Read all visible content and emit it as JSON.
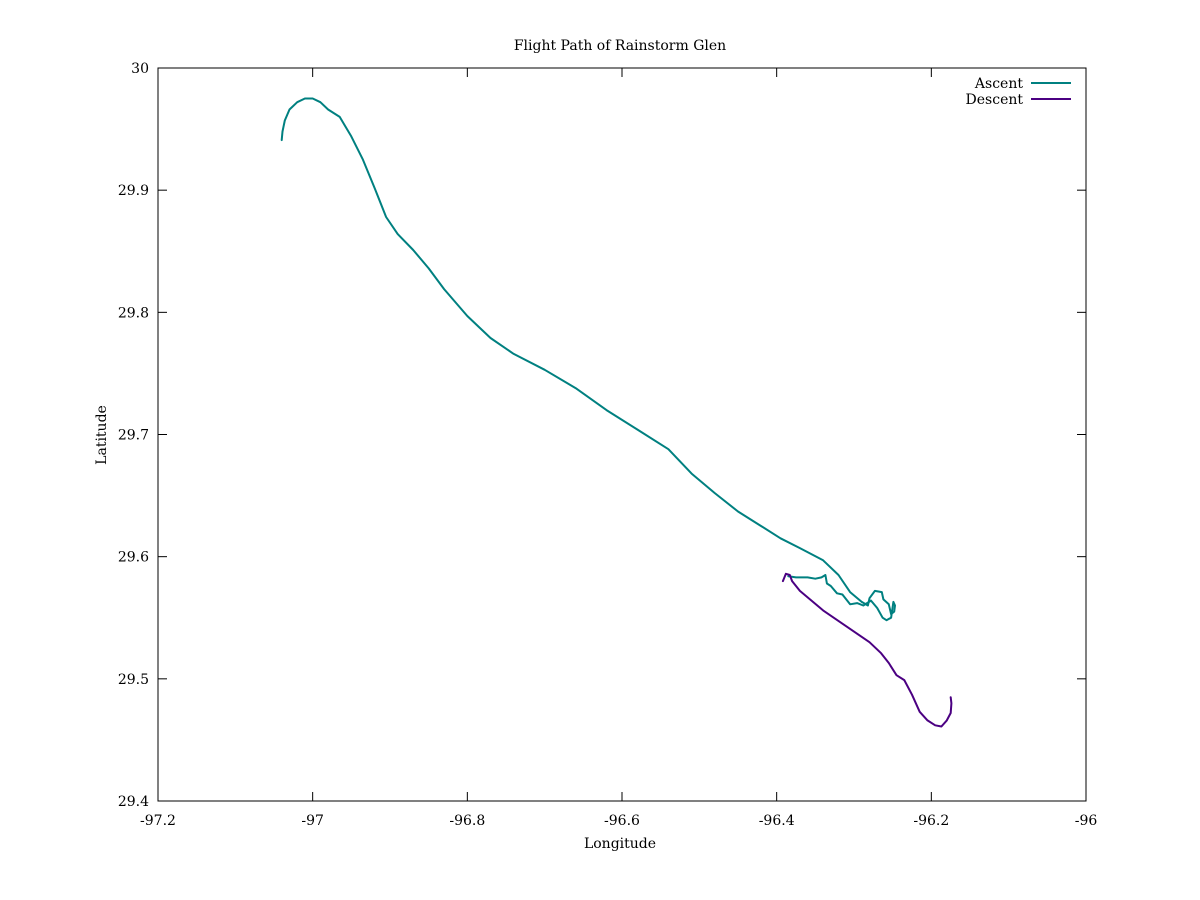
{
  "chart_data": {
    "type": "line",
    "title": "Flight Path of Rainstorm Glen",
    "xlabel": "Longitude",
    "ylabel": "Latitude",
    "xlim": [
      -97.2,
      -96.0
    ],
    "ylim": [
      29.4,
      30.0
    ],
    "x_ticks": [
      -97.2,
      -97.0,
      -96.8,
      -96.6,
      -96.4,
      -96.2,
      -96.0
    ],
    "x_tick_labels": [
      "-97.2",
      "-97",
      "-96.8",
      "-96.6",
      "-96.4",
      "-96.2",
      "-96"
    ],
    "y_ticks": [
      29.4,
      29.5,
      29.6,
      29.7,
      29.8,
      29.9,
      30.0
    ],
    "y_tick_labels": [
      "29.4",
      "29.5",
      "29.6",
      "29.7",
      "29.8",
      "29.9",
      "30"
    ],
    "grid": false,
    "legend_position": "top-right",
    "series": [
      {
        "name": "Ascent",
        "color": "#008080",
        "points": [
          [
            -97.04,
            29.941
          ],
          [
            -97.039,
            29.948
          ],
          [
            -97.036,
            29.957
          ],
          [
            -97.03,
            29.966
          ],
          [
            -97.02,
            29.972
          ],
          [
            -97.01,
            29.975
          ],
          [
            -97.0,
            29.975
          ],
          [
            -96.99,
            29.972
          ],
          [
            -96.98,
            29.966
          ],
          [
            -96.965,
            29.96
          ],
          [
            -96.95,
            29.944
          ],
          [
            -96.935,
            29.925
          ],
          [
            -96.92,
            29.902
          ],
          [
            -96.905,
            29.878
          ],
          [
            -96.89,
            29.864
          ],
          [
            -96.87,
            29.851
          ],
          [
            -96.85,
            29.836
          ],
          [
            -96.83,
            29.819
          ],
          [
            -96.8,
            29.797
          ],
          [
            -96.77,
            29.779
          ],
          [
            -96.74,
            29.766
          ],
          [
            -96.7,
            29.753
          ],
          [
            -96.66,
            29.738
          ],
          [
            -96.62,
            29.72
          ],
          [
            -96.58,
            29.704
          ],
          [
            -96.54,
            29.688
          ],
          [
            -96.51,
            29.668
          ],
          [
            -96.48,
            29.652
          ],
          [
            -96.45,
            29.637
          ],
          [
            -96.42,
            29.625
          ],
          [
            -96.395,
            29.615
          ],
          [
            -96.37,
            29.607
          ],
          [
            -96.34,
            29.597
          ],
          [
            -96.32,
            29.585
          ],
          [
            -96.305,
            29.571
          ],
          [
            -96.29,
            29.563
          ],
          [
            -96.282,
            29.56
          ],
          [
            -96.28,
            29.566
          ],
          [
            -96.273,
            29.572
          ],
          [
            -96.264,
            29.571
          ],
          [
            -96.262,
            29.565
          ],
          [
            -96.255,
            29.561
          ],
          [
            -96.252,
            29.553
          ],
          [
            -96.248,
            29.555
          ],
          [
            -96.247,
            29.56
          ],
          [
            -96.249,
            29.563
          ],
          [
            -96.252,
            29.55
          ],
          [
            -96.258,
            29.548
          ],
          [
            -96.263,
            29.55
          ],
          [
            -96.27,
            29.558
          ],
          [
            -96.278,
            29.564
          ],
          [
            -96.288,
            29.56
          ],
          [
            -96.296,
            29.562
          ],
          [
            -96.305,
            29.561
          ],
          [
            -96.315,
            29.569
          ],
          [
            -96.322,
            29.57
          ],
          [
            -96.33,
            29.576
          ],
          [
            -96.335,
            29.578
          ],
          [
            -96.337,
            29.585
          ],
          [
            -96.342,
            29.583
          ],
          [
            -96.35,
            29.582
          ],
          [
            -96.36,
            29.583
          ],
          [
            -96.375,
            29.583
          ],
          [
            -96.385,
            29.584
          ]
        ]
      },
      {
        "name": "Descent",
        "color": "#4b0082",
        "points": [
          [
            -96.392,
            29.58
          ],
          [
            -96.388,
            29.586
          ],
          [
            -96.383,
            29.585
          ],
          [
            -96.38,
            29.58
          ],
          [
            -96.37,
            29.572
          ],
          [
            -96.355,
            29.564
          ],
          [
            -96.34,
            29.556
          ],
          [
            -96.31,
            29.543
          ],
          [
            -96.28,
            29.53
          ],
          [
            -96.265,
            29.521
          ],
          [
            -96.255,
            29.513
          ],
          [
            -96.245,
            29.503
          ],
          [
            -96.235,
            29.499
          ],
          [
            -96.225,
            29.487
          ],
          [
            -96.215,
            29.473
          ],
          [
            -96.205,
            29.466
          ],
          [
            -96.195,
            29.462
          ],
          [
            -96.187,
            29.461
          ],
          [
            -96.18,
            29.466
          ],
          [
            -96.175,
            29.472
          ],
          [
            -96.174,
            29.48
          ],
          [
            -96.175,
            29.485
          ]
        ]
      }
    ]
  }
}
